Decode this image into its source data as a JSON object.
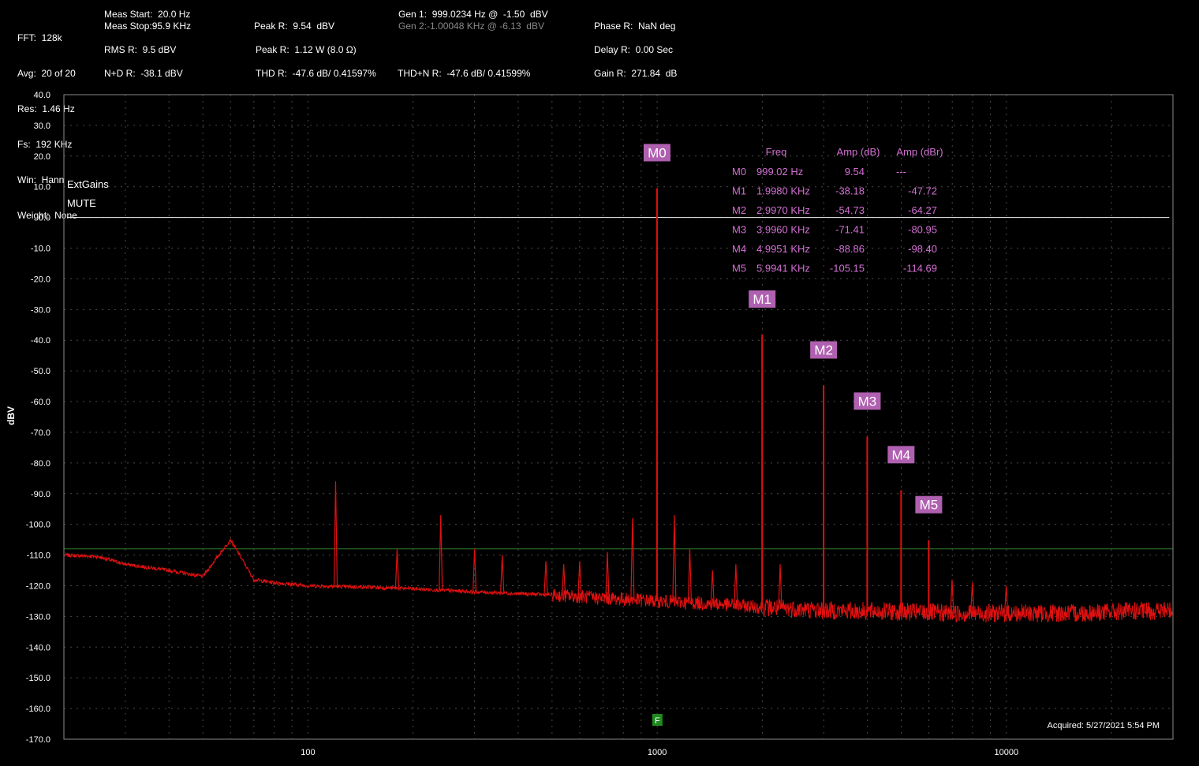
{
  "header": {
    "col1": [
      "FFT:  128k",
      "Avg:  20 of 20",
      "Res:  1.46 Hz",
      "Fs:  192 KHz",
      "Win:  Hann",
      "Weight:  None"
    ],
    "meas_start": "Meas Start:  20.0 Hz",
    "meas_stop": "Meas Stop:95.9 KHz",
    "rms": "RMS R:  9.5 dBV",
    "nd": "N+D R:  -38.1 dBV",
    "peak_r": "Peak R:  9.54  dBV",
    "peak_w": "Peak R:  1.12 W (8.0 Ω)",
    "thd": "THD R:  -47.6 dB/ 0.41597%",
    "gen1": "Gen 1:  999.0234 Hz @  -1.50  dBV",
    "gen2": "Gen 2:-1.00048 KHz @ -6.13  dBV",
    "thdn": "THD+N R:  -47.6 dB/ 0.41599%",
    "phase": "Phase R:  NaN deg",
    "delay": "Delay R:  0.00 Sec",
    "gain": "Gain R:  271.84  dB"
  },
  "overlay": {
    "extgains": "ExtGains",
    "mute": "MUTE",
    "acquired": "Acquired:  5/27/2021   5:54 PM",
    "freq_marker": "F"
  },
  "marker_table": {
    "headers": [
      "Freq",
      "Amp (dB)",
      "Amp (dBr)"
    ],
    "rows": [
      [
        "M0",
        "999.02 Hz",
        "9.54",
        "---"
      ],
      [
        "M1",
        "1.9980 KHz",
        "-38.18",
        "-47.72"
      ],
      [
        "M2",
        "2.9970 KHz",
        "-54.73",
        "-64.27"
      ],
      [
        "M3",
        "3.9960 KHz",
        "-71.41",
        "-80.95"
      ],
      [
        "M4",
        "4.9951 KHz",
        "-88.86",
        "-98.40"
      ],
      [
        "M5",
        "5.9941 KHz",
        "-105.15",
        "-114.69"
      ]
    ]
  },
  "colors": {
    "background": "#000000",
    "trace": "#e01010",
    "grid": "#4a4a4a",
    "marker_box": "#b060b0",
    "table_text": "#d36fd3",
    "ref_line": "#ffffff",
    "thresh_line": "#2e7d2e",
    "freq_marker": "#1e8a1e"
  },
  "chart_data": {
    "type": "line",
    "xscale": "log",
    "xlim": [
      20,
      30000
    ],
    "ylim": [
      -170,
      40
    ],
    "ylabel": "dBV",
    "xticks": [
      100,
      1000,
      10000
    ],
    "xtick_labels": [
      "100",
      "1000",
      "10000"
    ],
    "yticks": [
      40,
      30,
      20,
      10,
      0,
      -10,
      -20,
      -30,
      -40,
      -50,
      -60,
      -70,
      -80,
      -90,
      -100,
      -110,
      -120,
      -130,
      -140,
      -150,
      -160,
      -170
    ],
    "ytick_labels": [
      "40.0",
      "30.0",
      "20.0",
      "10.0",
      "0.0",
      "-10.0",
      "-20.0",
      "-30.0",
      "-40.0",
      "-50.0",
      "-60.0",
      "-70.0",
      "-80.0",
      "-90.0",
      "-100.0",
      "-110.0",
      "-120.0",
      "-130.0",
      "-140.0",
      "-150.0",
      "-160.0",
      "-170.0"
    ],
    "grid": true,
    "reference_line_dbv": 0,
    "threshold_line_dbv": -108,
    "noise_floor": {
      "x": [
        20,
        25,
        30,
        40,
        50,
        60,
        70,
        80,
        100,
        150,
        200,
        300,
        500,
        700,
        1000,
        1500,
        2000,
        3000,
        5000,
        7000,
        10000,
        15000,
        20000,
        30000
      ],
      "y": [
        -110,
        -110.5,
        -113,
        -115,
        -117,
        -105,
        -118,
        -119,
        -120,
        -120.5,
        -121,
        -122,
        -123,
        -124,
        -125,
        -126,
        -127,
        -128,
        -128.5,
        -129,
        -129,
        -129,
        -128.5,
        -128
      ]
    },
    "spurs": [
      {
        "x": 120,
        "y": -86
      },
      {
        "x": 180,
        "y": -108
      },
      {
        "x": 240,
        "y": -97
      },
      {
        "x": 300,
        "y": -108
      },
      {
        "x": 360,
        "y": -110
      },
      {
        "x": 480,
        "y": -112
      },
      {
        "x": 540,
        "y": -113
      },
      {
        "x": 600,
        "y": -112
      },
      {
        "x": 720,
        "y": -109
      },
      {
        "x": 850,
        "y": -98
      },
      {
        "x": 1120,
        "y": -97
      },
      {
        "x": 1240,
        "y": -108
      },
      {
        "x": 1440,
        "y": -115
      },
      {
        "x": 1680,
        "y": -113
      },
      {
        "x": 2250,
        "y": -113
      },
      {
        "x": 6990,
        "y": -118
      },
      {
        "x": 7990,
        "y": -119
      },
      {
        "x": 9990,
        "y": -120
      }
    ],
    "markers": [
      {
        "name": "M0",
        "x": 999.02,
        "y": 9.54
      },
      {
        "name": "M1",
        "x": 1998.0,
        "y": -38.18
      },
      {
        "name": "M2",
        "x": 2997.0,
        "y": -54.73
      },
      {
        "name": "M3",
        "x": 3996.0,
        "y": -71.41
      },
      {
        "name": "M4",
        "x": 4995.1,
        "y": -88.86
      },
      {
        "name": "M5",
        "x": 5994.1,
        "y": -105.15
      }
    ]
  }
}
